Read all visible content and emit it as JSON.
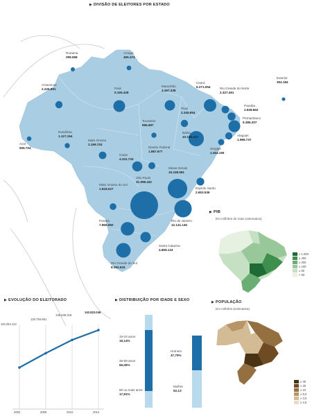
{
  "main": {
    "title": "DIVISÃO DE ELEITORES POR ESTADO",
    "states": [
      {
        "name": "Roraima",
        "value": "299.658"
      },
      {
        "name": "Amapá",
        "value": "455.474"
      },
      {
        "name": "Amazonas",
        "value": "2.226.891"
      },
      {
        "name": "Pará",
        "value": "5.155.428"
      },
      {
        "name": "Maranhão",
        "value": "4.497.338"
      },
      {
        "name": "Ceará",
        "value": "6.271.054"
      },
      {
        "name": "Rio Grande do Norte",
        "value": "2.327.461"
      },
      {
        "name": "Paraíba",
        "value": "2.838.862"
      },
      {
        "name": "Pernambuco",
        "value": "6.386.307"
      },
      {
        "name": "Alagoas",
        "value": "1.986.737"
      },
      {
        "name": "Sergipe",
        "value": "1.454.165"
      },
      {
        "name": "Bahia",
        "value": "10.185.417"
      },
      {
        "name": "Piauí",
        "value": "2.345.854"
      },
      {
        "name": "Tocantins",
        "value": "996.897"
      },
      {
        "name": "Acre",
        "value": "506.724"
      },
      {
        "name": "Rondônia",
        "value": "1.127.154"
      },
      {
        "name": "Mato Grosso",
        "value": "2.199.703"
      },
      {
        "name": "Goiás",
        "value": "4.331.733"
      },
      {
        "name": "Distrito Federal",
        "value": "1.887.677"
      },
      {
        "name": "Minas Gerais",
        "value": "15.248.681"
      },
      {
        "name": "Espírito Santo",
        "value": "2.653.536"
      },
      {
        "name": "Mato Grosso do Sul",
        "value": "1.818.027"
      },
      {
        "name": "São Paulo",
        "value": "31.998.432"
      },
      {
        "name": "Rio de Janeiro",
        "value": "12.141.145"
      },
      {
        "name": "Paraná",
        "value": "7.865.950"
      },
      {
        "name": "Santa Catarina",
        "value": "4.859.124"
      },
      {
        "name": "Rio Grande do Sul",
        "value": "8.392.633"
      },
      {
        "name": "Exterior",
        "value": "354.184"
      }
    ]
  },
  "pib": {
    "title": "PIB",
    "subtitle": "Em milhões de reais (estimativa)",
    "legend": [
      "≥ 1.000",
      "≥ 400",
      "≥ 200",
      "≥ 100",
      "≥ 50",
      "< 50"
    ],
    "colors": [
      "#1f6b35",
      "#3e8f4d",
      "#6aae73",
      "#98c89a",
      "#c6e0c4",
      "#e6f1e2"
    ]
  },
  "populacao": {
    "title": "POPULAÇÃO",
    "subtitle": "Em milhões (estimativa)",
    "legend": [
      "≥ 40",
      "≥ 20",
      "≥ 10",
      "≥ 5,0",
      "≥ 3,0",
      "≥ 2,5"
    ],
    "colors": [
      "#4a3214",
      "#6e4b22",
      "#947040",
      "#b79568",
      "#d3bb96",
      "#ebdcc3"
    ]
  },
  "evolucao": {
    "title": "EVOLUÇÃO DO ELEITORADO",
    "chart_data": {
      "type": "line",
      "x": [
        "2002",
        "2006",
        "2010",
        "2014"
      ],
      "values": [
        115254113,
        125794661,
        135539318,
        142822046
      ],
      "labels": [
        "115.254.113",
        "125.794.661",
        "135.539.318",
        "142.822.046"
      ]
    }
  },
  "distribuicao": {
    "title": "DISTRIBUIÇÃO POR IDADE E SEXO",
    "age": [
      {
        "label": "15-24 anos",
        "value": "16,14%"
      },
      {
        "label": "25-59 anos",
        "value": "66,06%"
      },
      {
        "label": "60 ou mais anos",
        "value": "17,81%"
      }
    ],
    "sex": [
      {
        "label": "Homem",
        "value": "47,79%"
      },
      {
        "label": "Mulher",
        "value": "52,13"
      }
    ]
  }
}
